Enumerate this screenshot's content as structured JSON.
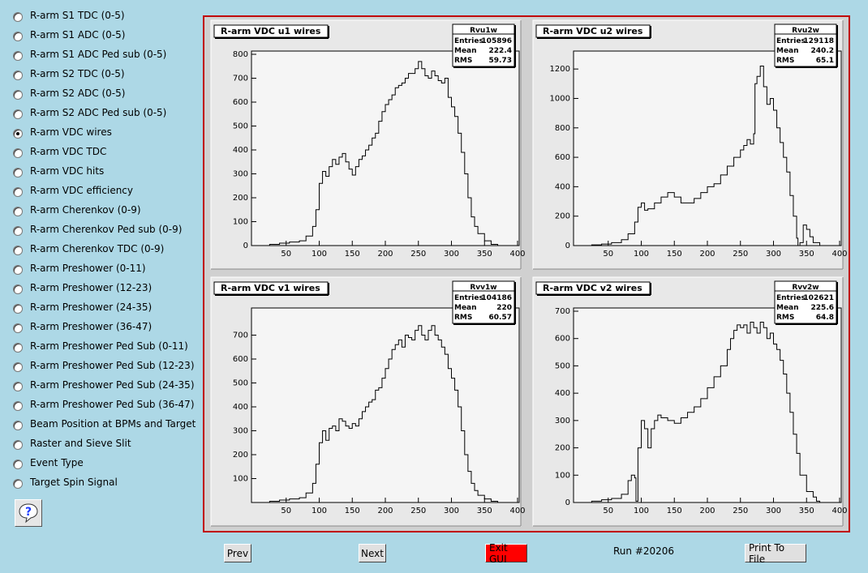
{
  "menu": {
    "items": [
      {
        "label": "R-arm S1 TDC (0-5)",
        "checked": false
      },
      {
        "label": "R-arm S1 ADC (0-5)",
        "checked": false
      },
      {
        "label": "R-arm S1 ADC Ped sub (0-5)",
        "checked": false
      },
      {
        "label": "R-arm S2 TDC (0-5)",
        "checked": false
      },
      {
        "label": "R-arm S2 ADC (0-5)",
        "checked": false
      },
      {
        "label": "R-arm S2 ADC Ped sub (0-5)",
        "checked": false
      },
      {
        "label": "R-arm VDC wires",
        "checked": true
      },
      {
        "label": "R-arm VDC TDC",
        "checked": false
      },
      {
        "label": "R-arm VDC hits",
        "checked": false
      },
      {
        "label": "R-arm VDC efficiency",
        "checked": false
      },
      {
        "label": "R-arm Cherenkov (0-9)",
        "checked": false
      },
      {
        "label": "R-arm Cherenkov Ped sub (0-9)",
        "checked": false
      },
      {
        "label": "R-arm Cherenkov TDC (0-9)",
        "checked": false
      },
      {
        "label": "R-arm Preshower (0-11)",
        "checked": false
      },
      {
        "label": "R-arm Preshower (12-23)",
        "checked": false
      },
      {
        "label": "R-arm Preshower (24-35)",
        "checked": false
      },
      {
        "label": "R-arm Preshower (36-47)",
        "checked": false
      },
      {
        "label": "R-arm Preshower Ped Sub (0-11)",
        "checked": false
      },
      {
        "label": "R-arm Preshower Ped Sub (12-23)",
        "checked": false
      },
      {
        "label": "R-arm Preshower Ped Sub (24-35)",
        "checked": false
      },
      {
        "label": "R-arm Preshower Ped Sub (36-47)",
        "checked": false
      },
      {
        "label": "Beam Position at BPMs and Target",
        "checked": false
      },
      {
        "label": "Raster and Sieve Slit",
        "checked": false
      },
      {
        "label": "Event Type",
        "checked": false
      },
      {
        "label": "Target Spin Signal",
        "checked": false
      }
    ],
    "help_icon": "question-mark-icon"
  },
  "buttons": {
    "prev": "Prev",
    "next": "Next",
    "exit": "Exit GUI",
    "print": "Print To File"
  },
  "run_label": "Run #20206",
  "colors": {
    "background": "#add8e6",
    "canvas_border": "#c00000",
    "exit_button": "#ff0000"
  },
  "chart_data": [
    {
      "type": "line",
      "title": "R-arm VDC u1 wires",
      "stats": {
        "name": "Rvu1w",
        "entries": "105896",
        "mean": "222.4",
        "rms": "59.73"
      },
      "xlim": [
        0,
        400
      ],
      "ylim": [
        0,
        800
      ],
      "xticks": [
        50,
        100,
        150,
        200,
        250,
        300,
        350,
        400
      ],
      "yticks": [
        0,
        100,
        200,
        300,
        400,
        500,
        600,
        700,
        800
      ],
      "x": [
        10,
        25,
        40,
        55,
        70,
        80,
        90,
        95,
        100,
        105,
        110,
        115,
        120,
        125,
        130,
        135,
        140,
        145,
        150,
        155,
        160,
        165,
        170,
        175,
        180,
        185,
        190,
        195,
        200,
        205,
        210,
        215,
        220,
        225,
        230,
        235,
        240,
        245,
        250,
        255,
        260,
        265,
        270,
        275,
        280,
        285,
        290,
        295,
        300,
        305,
        310,
        315,
        320,
        325,
        330,
        335,
        340,
        350,
        360,
        370
      ],
      "y": [
        0,
        5,
        10,
        15,
        20,
        40,
        80,
        150,
        260,
        310,
        290,
        330,
        360,
        340,
        370,
        385,
        350,
        320,
        295,
        330,
        360,
        375,
        400,
        420,
        450,
        470,
        520,
        560,
        590,
        610,
        630,
        660,
        670,
        680,
        700,
        720,
        720,
        740,
        770,
        740,
        710,
        700,
        730,
        710,
        690,
        680,
        700,
        620,
        580,
        540,
        470,
        390,
        300,
        200,
        120,
        80,
        50,
        20,
        5,
        0
      ]
    },
    {
      "type": "line",
      "title": "R-arm VDC u2 wires",
      "stats": {
        "name": "Rvu2w",
        "entries": "129118",
        "mean": "240.2",
        "rms": "65.1"
      },
      "xlim": [
        0,
        400
      ],
      "ylim": [
        0,
        1300
      ],
      "xticks": [
        50,
        100,
        150,
        200,
        250,
        300,
        350,
        400
      ],
      "yticks": [
        0,
        200,
        400,
        600,
        800,
        1000,
        1200
      ],
      "x": [
        10,
        25,
        40,
        55,
        70,
        80,
        90,
        95,
        100,
        105,
        110,
        120,
        130,
        140,
        150,
        160,
        170,
        180,
        190,
        200,
        210,
        220,
        230,
        240,
        250,
        255,
        260,
        265,
        270,
        272,
        275,
        280,
        285,
        290,
        295,
        300,
        305,
        310,
        315,
        320,
        325,
        330,
        335,
        337,
        340,
        345,
        350,
        355,
        360,
        370
      ],
      "y": [
        0,
        5,
        10,
        20,
        40,
        80,
        160,
        260,
        290,
        240,
        250,
        290,
        330,
        360,
        330,
        290,
        290,
        320,
        360,
        400,
        420,
        480,
        540,
        600,
        650,
        680,
        720,
        690,
        760,
        1100,
        1150,
        1220,
        1080,
        960,
        1000,
        920,
        800,
        700,
        600,
        500,
        340,
        200,
        50,
        0,
        20,
        140,
        110,
        60,
        20,
        0
      ]
    },
    {
      "type": "line",
      "title": "R-arm VDC v1 wires",
      "stats": {
        "name": "Rvv1w",
        "entries": "104186",
        "mean": "220",
        "rms": "60.57"
      },
      "xlim": [
        0,
        400
      ],
      "ylim": [
        0,
        800
      ],
      "xticks": [
        50,
        100,
        150,
        200,
        250,
        300,
        350,
        400
      ],
      "yticks": [
        100,
        200,
        300,
        400,
        500,
        600,
        700
      ],
      "x": [
        10,
        25,
        40,
        55,
        70,
        80,
        90,
        95,
        100,
        105,
        110,
        115,
        120,
        125,
        130,
        135,
        140,
        145,
        150,
        155,
        160,
        165,
        170,
        175,
        180,
        185,
        190,
        195,
        200,
        205,
        210,
        215,
        220,
        225,
        230,
        235,
        240,
        245,
        250,
        255,
        260,
        265,
        270,
        275,
        280,
        285,
        290,
        295,
        300,
        305,
        310,
        315,
        320,
        325,
        330,
        335,
        340,
        350,
        360,
        370
      ],
      "y": [
        0,
        5,
        10,
        15,
        20,
        40,
        80,
        160,
        250,
        300,
        260,
        310,
        320,
        300,
        350,
        340,
        320,
        310,
        330,
        320,
        350,
        380,
        400,
        420,
        430,
        470,
        480,
        520,
        560,
        600,
        640,
        660,
        680,
        650,
        700,
        690,
        680,
        720,
        740,
        700,
        680,
        720,
        740,
        700,
        680,
        650,
        620,
        560,
        520,
        470,
        400,
        300,
        200,
        130,
        80,
        50,
        30,
        15,
        5,
        0
      ]
    },
    {
      "type": "line",
      "title": "R-arm VDC v2 wires",
      "stats": {
        "name": "Rvv2w",
        "entries": "102621",
        "mean": "225.6",
        "rms": "64.8"
      },
      "xlim": [
        0,
        400
      ],
      "ylim": [
        0,
        700
      ],
      "xticks": [
        50,
        100,
        150,
        200,
        250,
        300,
        350,
        400
      ],
      "yticks": [
        0,
        100,
        200,
        300,
        400,
        500,
        600,
        700
      ],
      "x": [
        10,
        25,
        40,
        55,
        70,
        80,
        85,
        90,
        92,
        95,
        100,
        105,
        110,
        115,
        120,
        125,
        130,
        140,
        150,
        160,
        170,
        180,
        190,
        200,
        210,
        220,
        230,
        235,
        240,
        245,
        250,
        255,
        260,
        265,
        270,
        275,
        280,
        285,
        290,
        295,
        300,
        305,
        310,
        315,
        320,
        325,
        330,
        335,
        340,
        350,
        360,
        365,
        370
      ],
      "y": [
        0,
        5,
        10,
        15,
        30,
        80,
        100,
        90,
        5,
        200,
        300,
        270,
        200,
        270,
        300,
        320,
        310,
        300,
        290,
        310,
        330,
        350,
        380,
        420,
        460,
        500,
        560,
        600,
        630,
        650,
        640,
        650,
        620,
        660,
        640,
        620,
        660,
        640,
        600,
        620,
        580,
        560,
        520,
        470,
        400,
        330,
        250,
        180,
        100,
        40,
        20,
        5,
        0
      ]
    }
  ]
}
